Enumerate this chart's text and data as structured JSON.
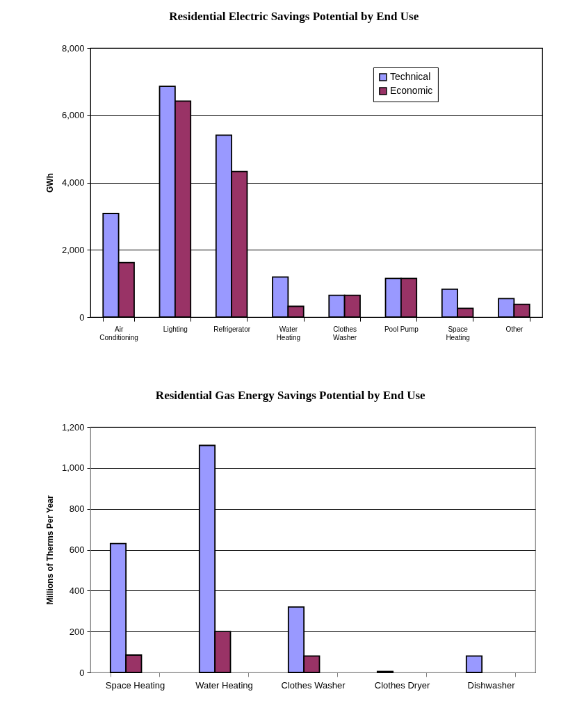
{
  "chart_data": [
    {
      "type": "bar",
      "title": "Residential Electric Savings Potential by End Use",
      "ylabel": "GWh",
      "categories": [
        "Air Conditioning",
        "Lighting",
        "Refrigerator",
        "Water Heating",
        "Clothes Washer",
        "Pool Pump",
        "Space Heating",
        "Other"
      ],
      "series": [
        {
          "name": "Technical",
          "color": "#9999ff",
          "values": [
            3080,
            6860,
            5410,
            1190,
            650,
            1150,
            830,
            550
          ]
        },
        {
          "name": "Economic",
          "color": "#993366",
          "values": [
            1620,
            6420,
            4330,
            320,
            650,
            1150,
            260,
            380
          ]
        }
      ],
      "ylim": [
        0,
        8000
      ],
      "yticks": [
        0,
        {
          "value": 2000,
          "label": "2,000"
        },
        {
          "value": 4000,
          "label": "4,000"
        },
        {
          "value": 6000,
          "label": "6,000"
        },
        {
          "value": 8000,
          "label": "8,000"
        }
      ],
      "grid": "y",
      "legend": "top right"
    },
    {
      "type": "bar",
      "title": "Residential Gas Energy Savings Potential by End Use",
      "ylabel": "Millions of Therms Per Year",
      "categories": [
        "Space Heating",
        "Water Heating",
        "Clothes Washer",
        "Clothes Dryer",
        "Dishwasher"
      ],
      "series": [
        {
          "name": "Technical",
          "color": "#9999ff",
          "values": [
            630,
            1110,
            320,
            5,
            80
          ]
        },
        {
          "name": "Economic",
          "color": "#993366",
          "values": [
            85,
            200,
            80,
            null,
            null
          ]
        }
      ],
      "ylim": [
        0,
        1200
      ],
      "yticks": [
        0,
        200,
        400,
        600,
        800,
        {
          "value": 1000,
          "label": "1,000"
        },
        {
          "value": 1200,
          "label": "1,200"
        }
      ],
      "grid": "y",
      "legend": "top right"
    }
  ]
}
